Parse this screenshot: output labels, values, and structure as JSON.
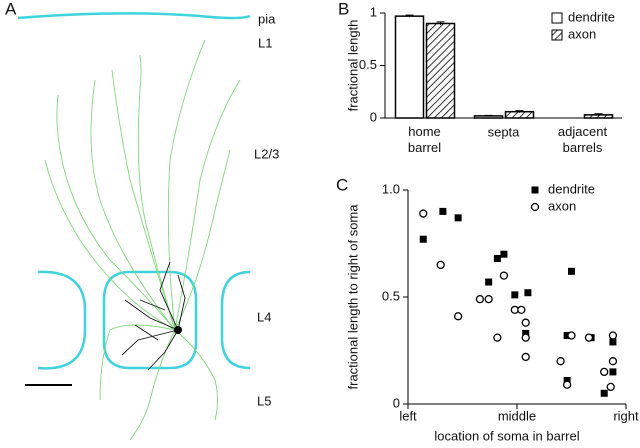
{
  "panel_labels": [
    "A",
    "B",
    "C"
  ],
  "panel_a": {
    "layer_labels": [
      "pia",
      "L1",
      "L2/3",
      "L4",
      "L5"
    ]
  },
  "chart_data": [
    {
      "type": "bar",
      "ylabel": "fractional length",
      "categories": [
        "home\nbarrel",
        "septa",
        "adjacent\nbarrels"
      ],
      "series": [
        {
          "name": "dendrite",
          "fill": "white",
          "values": [
            0.97,
            0.02,
            0.0
          ],
          "errors": [
            0.01,
            0.005,
            0.0
          ]
        },
        {
          "name": "axon",
          "fill": "hatch",
          "values": [
            0.9,
            0.06,
            0.03
          ],
          "errors": [
            0.015,
            0.01,
            0.01
          ]
        }
      ],
      "ylim": [
        0,
        1
      ],
      "yticks": [
        0,
        0.5,
        1
      ],
      "legend": "top-right"
    },
    {
      "type": "scatter",
      "xlabel": "location of soma in barrel",
      "ylabel": "fractional length to right of soma",
      "series": [
        {
          "name": "dendrite",
          "marker": "filled-square",
          "x": [
            0.07,
            0.16,
            0.23,
            0.37,
            0.41,
            0.44,
            0.49,
            0.55,
            0.54,
            0.75,
            0.73,
            0.84,
            0.94,
            0.73,
            0.94,
            0.9
          ],
          "values": [
            0.77,
            0.9,
            0.87,
            0.57,
            0.68,
            0.7,
            0.51,
            0.52,
            0.33,
            0.62,
            0.32,
            0.31,
            0.29,
            0.11,
            0.15,
            0.05
          ]
        },
        {
          "name": "axon",
          "marker": "open-circle",
          "x": [
            0.07,
            0.15,
            0.23,
            0.33,
            0.37,
            0.41,
            0.44,
            0.49,
            0.52,
            0.54,
            0.54,
            0.54,
            0.75,
            0.7,
            0.73,
            0.94,
            0.94,
            0.9,
            0.93,
            0.83
          ],
          "values": [
            0.89,
            0.65,
            0.41,
            0.49,
            0.49,
            0.31,
            0.6,
            0.44,
            0.44,
            0.38,
            0.31,
            0.22,
            0.32,
            0.2,
            0.09,
            0.32,
            0.2,
            0.15,
            0.08,
            0.31
          ]
        }
      ],
      "xlim": [
        0,
        1
      ],
      "xticks": [
        {
          "value": 0,
          "label": "left"
        },
        {
          "value": 0.5,
          "label": "middle"
        },
        {
          "value": 1,
          "label": "right"
        }
      ],
      "ylim": [
        0,
        1
      ],
      "yticks": [
        0,
        0.5,
        {
          "value": 1,
          "label": "1.0"
        }
      ],
      "legend": "top-right"
    }
  ]
}
